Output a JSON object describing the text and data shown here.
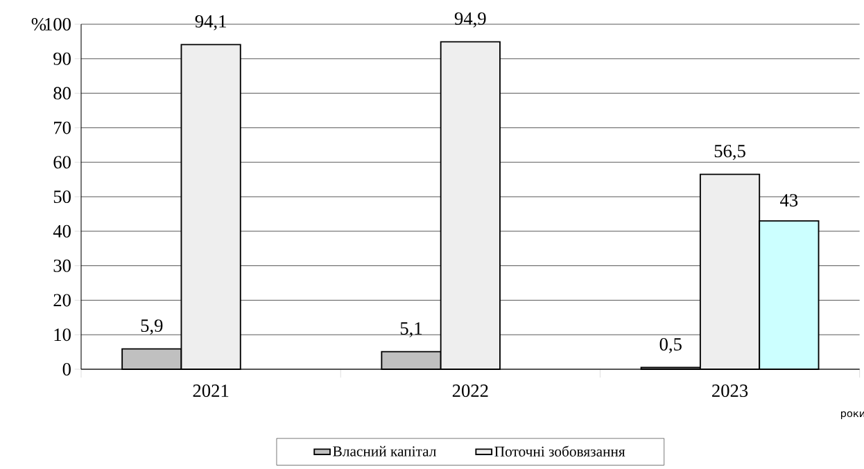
{
  "chart_data": {
    "type": "bar",
    "ylabel": "%",
    "xlabel": "роки",
    "categories": [
      "2021",
      "2022",
      "2023"
    ],
    "series": [
      {
        "name": "Власний капітал",
        "color": "#c0c0c0",
        "values": [
          5.9,
          5.1,
          0.5
        ],
        "value_labels": [
          "5,9",
          "5,1",
          "0,5"
        ]
      },
      {
        "name": "Поточні зобовязання",
        "color": "#eeeeee",
        "values": [
          94.1,
          94.9,
          56.5
        ],
        "value_labels": [
          "94,1",
          "94,9",
          "56,5"
        ]
      },
      {
        "color": "#ccffff",
        "values": [
          null,
          null,
          43
        ],
        "value_labels": [
          null,
          null,
          "43"
        ]
      }
    ],
    "ylim": [
      0,
      100
    ],
    "yticks": [
      0,
      10,
      20,
      30,
      40,
      50,
      60,
      70,
      80,
      90,
      100
    ],
    "grid": "y",
    "legend": "bottom"
  }
}
